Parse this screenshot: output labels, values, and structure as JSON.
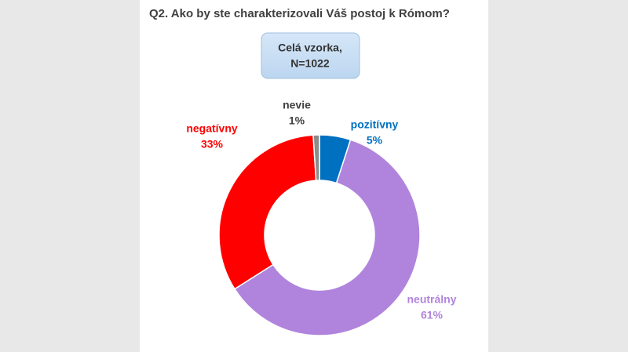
{
  "chart_data": {
    "type": "donut",
    "title": "Q2. Ako by ste charakterizovali Váš postoj k Rómom?",
    "subtitle": [
      "Celá vzorka,",
      "N=1022"
    ],
    "categories": [
      "pozitívny",
      "neutrálny",
      "negatívny",
      "nevie"
    ],
    "values": [
      5,
      61,
      33,
      1
    ],
    "value_labels": [
      "5%",
      "61%",
      "33%",
      "1%"
    ],
    "colors": [
      "#0070c0",
      "#b084dc",
      "#ff0000",
      "#8c8c8c"
    ]
  }
}
